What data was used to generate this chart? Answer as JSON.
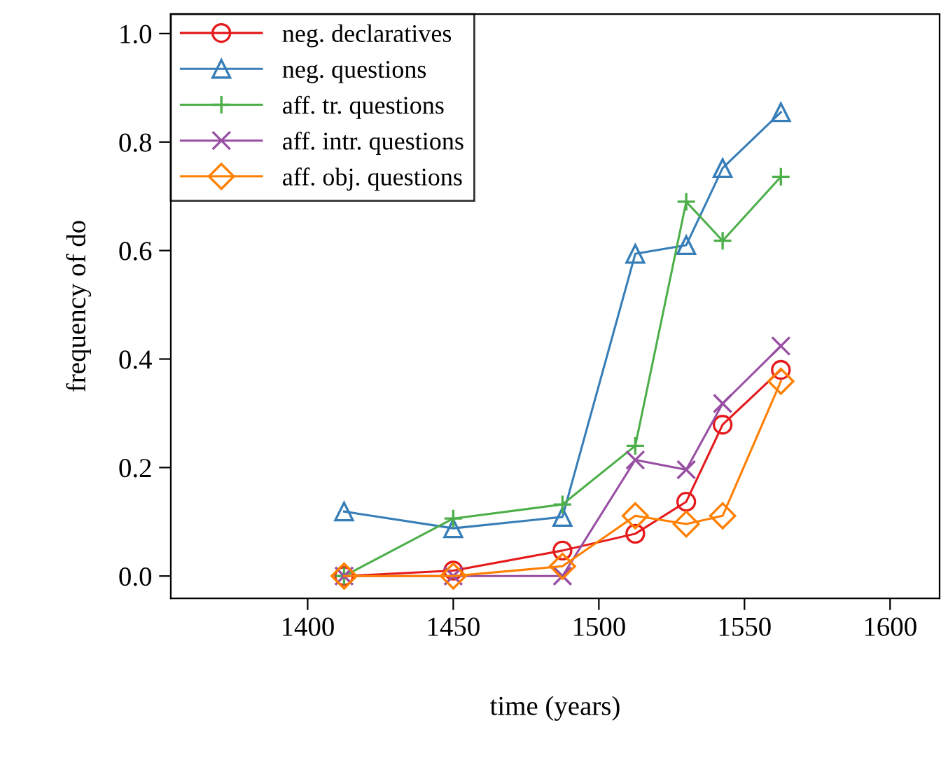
{
  "chart_data": {
    "type": "line",
    "xlabel": "time (years)",
    "ylabel": "frequency of do",
    "x": [
      1412.5,
      1450,
      1487.5,
      1512.5,
      1530,
      1542.5,
      1562.5
    ],
    "series": [
      {
        "name": "neg. declaratives",
        "color": "#e41a1c",
        "marker": "circle",
        "values": [
          0,
          0.01,
          0.047,
          0.078,
          0.137,
          0.279,
          0.38
        ]
      },
      {
        "name": "neg. questions",
        "color": "#377eb8",
        "marker": "triangle",
        "values": [
          0.119,
          0.088,
          0.109,
          0.594,
          0.61,
          0.752,
          0.855
        ]
      },
      {
        "name": "aff. tr. questions",
        "color": "#4daf4a",
        "marker": "plus",
        "values": [
          0,
          0.106,
          0.132,
          0.24,
          0.69,
          0.618,
          0.736
        ]
      },
      {
        "name": "aff. intr. questions",
        "color": "#984ea3",
        "marker": "cross",
        "values": [
          0,
          0,
          0,
          0.214,
          0.196,
          0.318,
          0.424
        ]
      },
      {
        "name": "aff. obj. questions",
        "color": "#ff7f00",
        "marker": "diamond",
        "values": [
          0,
          0,
          0.018,
          0.111,
          0.096,
          0.111,
          0.359
        ]
      }
    ],
    "xlim": [
      1353,
      1617
    ],
    "ylim": [
      -0.041,
      1.036
    ],
    "xticks": [
      1400,
      1450,
      1500,
      1550,
      1600
    ],
    "yticks": [
      {
        "value": 0,
        "label": "0.0"
      },
      {
        "value": 0.2,
        "label": "0.2"
      },
      {
        "value": 0.4,
        "label": "0.4"
      },
      {
        "value": 0.6,
        "label": "0.6"
      },
      {
        "value": 0.8,
        "label": "0.8"
      },
      {
        "value": 1,
        "label": "1.0"
      }
    ],
    "grid": false,
    "legend": "top left",
    "line_style": "solid"
  }
}
